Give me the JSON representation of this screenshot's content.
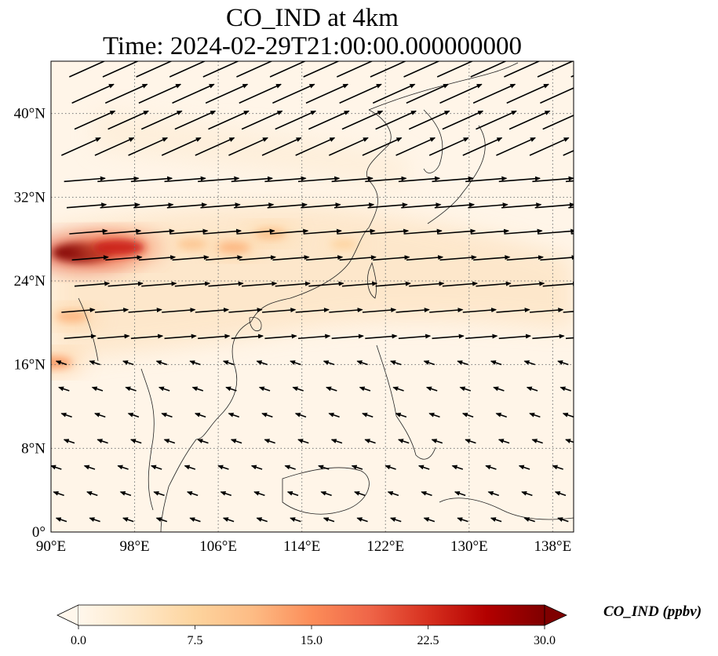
{
  "title": {
    "line1": "CO_IND at 4km",
    "line2": "Time: 2024-02-29T21:00:00.000000000"
  },
  "map": {
    "lon_range": [
      90,
      140
    ],
    "lat_range": [
      0,
      45
    ],
    "lon_ticks": [
      "90°E",
      "98°E",
      "106°E",
      "114°E",
      "122°E",
      "130°E",
      "138°E"
    ],
    "lon_tick_values": [
      90,
      98,
      106,
      114,
      122,
      130,
      138
    ],
    "lat_ticks": [
      "0°",
      "8°N",
      "16°N",
      "24°N",
      "32°N",
      "40°N"
    ],
    "lat_tick_values": [
      0,
      8,
      16,
      24,
      32,
      40
    ],
    "gridlines": true,
    "field": "CO_IND concentration (ppbv), OrRd colormap",
    "hotspots": [
      {
        "lon": 93,
        "lat": 26.7,
        "value": 30
      },
      {
        "lon": 96.5,
        "lat": 27.2,
        "value": 24
      },
      {
        "lon": 103.5,
        "lat": 27.5,
        "value": 10
      },
      {
        "lon": 107.5,
        "lat": 27.2,
        "value": 12
      },
      {
        "lon": 111,
        "lat": 28.5,
        "value": 11
      },
      {
        "lon": 118,
        "lat": 27.5,
        "value": 8
      },
      {
        "lon": 92,
        "lat": 20.6,
        "value": 12
      },
      {
        "lon": 90.3,
        "lat": 16.2,
        "value": 14
      }
    ]
  },
  "colorbar": {
    "label": "CO_IND (ppbv)",
    "min": 0.0,
    "max": 30.0,
    "ticks": [
      "0.0",
      "7.5",
      "15.0",
      "22.5",
      "30.0"
    ],
    "tick_values": [
      0,
      7.5,
      15,
      22.5,
      30
    ],
    "extend": "both",
    "colormap": [
      "#fff7ec",
      "#fee8c8",
      "#fdd49e",
      "#fdbb84",
      "#fc8d59",
      "#ef6548",
      "#d7301f",
      "#b30000",
      "#7f0000"
    ]
  }
}
